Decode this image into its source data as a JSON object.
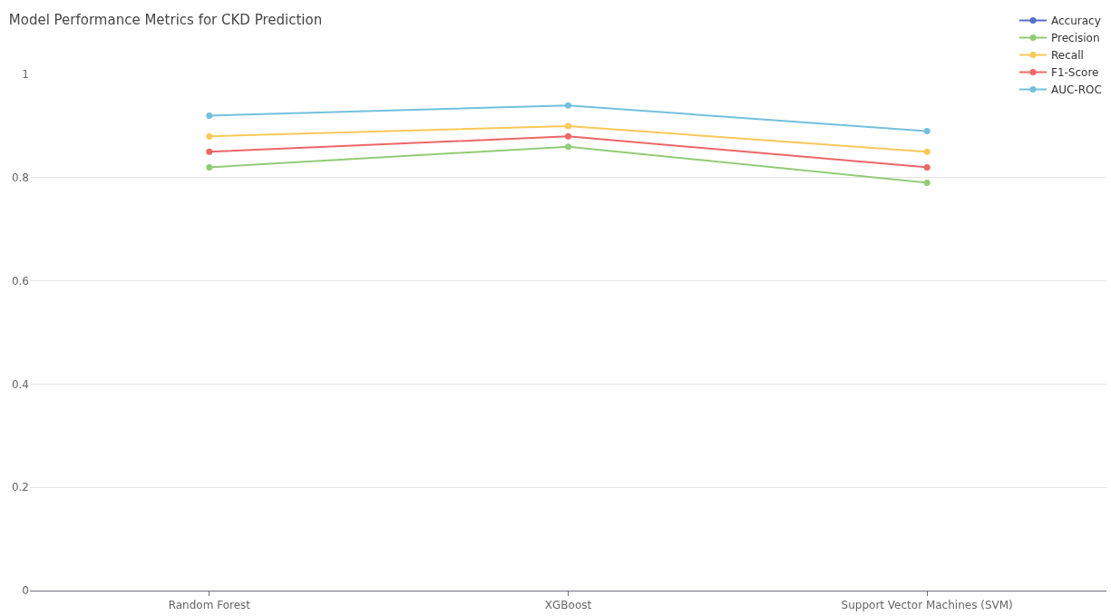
{
  "chart_data": {
    "type": "line",
    "title": "Model Performance Metrics for CKD Prediction",
    "categories": [
      "Random Forest",
      "XGBoost",
      "Support Vector Machines (SVM)"
    ],
    "series": [
      {
        "name": "Accuracy",
        "color": "#5470c6",
        "values": [
          null,
          null,
          null
        ]
      },
      {
        "name": "Precision",
        "color": "#91cc75",
        "values": [
          0.82,
          0.86,
          0.79
        ]
      },
      {
        "name": "Recall",
        "color": "#fac858",
        "values": [
          0.88,
          0.9,
          0.85
        ]
      },
      {
        "name": "F1-Score",
        "color": "#ee6666",
        "values": [
          0.85,
          0.88,
          0.82
        ]
      },
      {
        "name": "AUC-ROC",
        "color": "#73c0de",
        "values": [
          0.92,
          0.94,
          0.89
        ]
      }
    ],
    "ylim": [
      0,
      1
    ],
    "yticks": [
      0,
      0.2,
      0.4,
      0.6,
      0.8,
      1
    ],
    "grid": "y",
    "legend": "top right",
    "marker": "circle",
    "line_style": "solid"
  }
}
